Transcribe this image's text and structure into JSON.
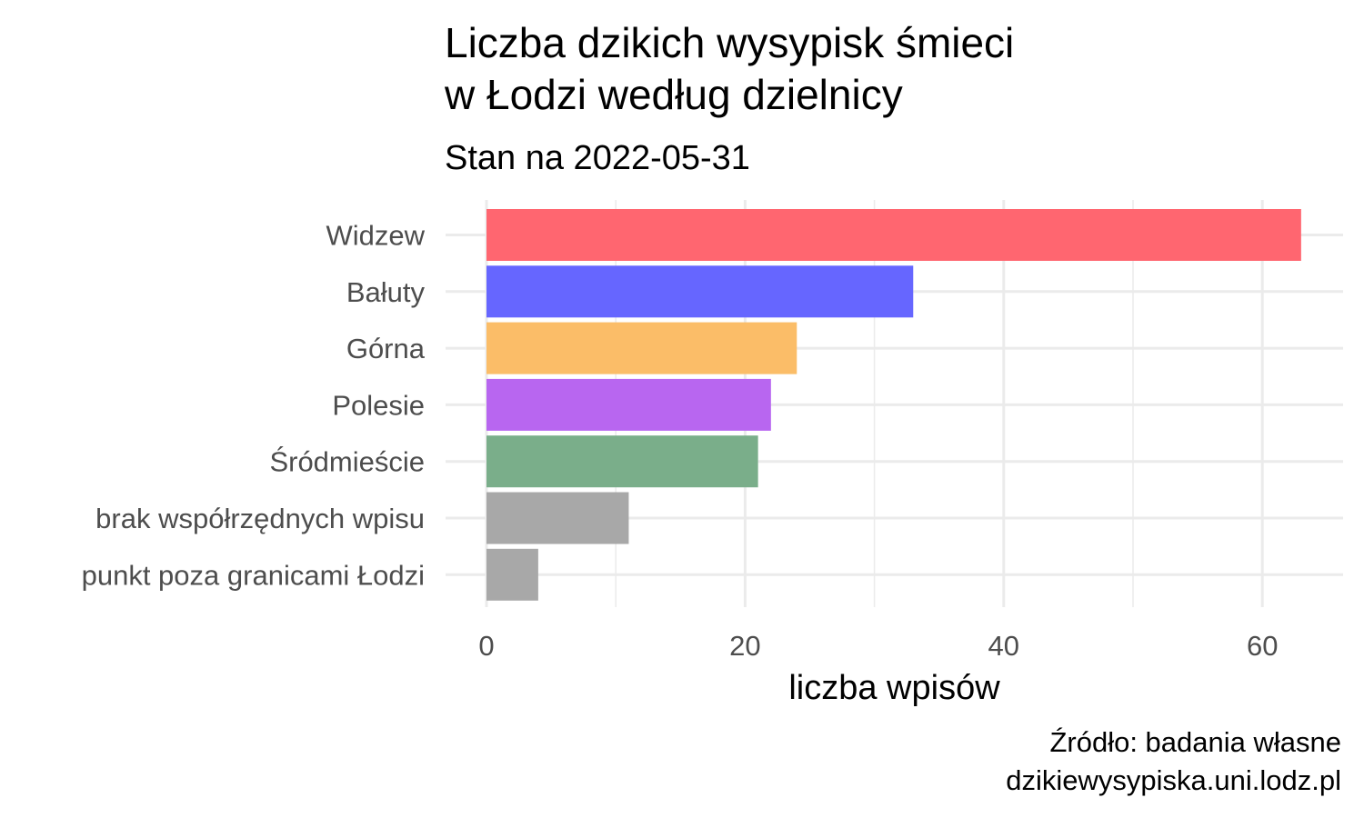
{
  "chart_data": {
    "type": "bar",
    "orientation": "horizontal",
    "title": [
      "Liczba dzikich wysypisk śmieci",
      "w Łodzi według dzielnicy"
    ],
    "subtitle": "Stan na 2022-05-31",
    "xlabel": "liczba wpisów",
    "ylabel": "",
    "categories": [
      "Widzew",
      "Bałuty",
      "Górna",
      "Polesie",
      "Śródmieście",
      "brak współrzędnych wpisu",
      "punkt poza granicami Łodzi"
    ],
    "values": [
      63,
      33,
      24,
      22,
      21,
      11,
      4
    ],
    "colors": [
      "#ff6670",
      "#6666ff",
      "#fbbd68",
      "#b866f0",
      "#7aae8a",
      "#a8a8a8",
      "#a8a8a8"
    ],
    "xlim": [
      0,
      66
    ],
    "xticks": [
      0,
      20,
      40,
      60
    ],
    "grid": true,
    "legend": "none",
    "caption": [
      "Źródło: badania własne",
      "dzikiewysypiska.uni.lodz.pl"
    ]
  }
}
